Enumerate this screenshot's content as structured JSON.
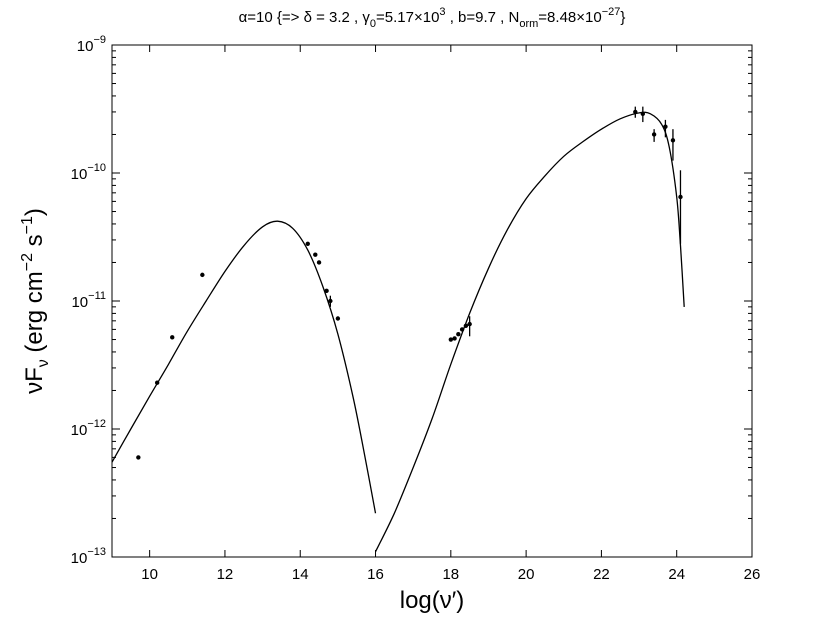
{
  "chart_data": {
    "type": "scatter",
    "title": "α=10 {=> δ = 3.2 , γ₀=5.17×10³ , b=9.7 , Nₒᵣₘ=8.48×10⁻²⁷}",
    "title_parts": {
      "a": "α=10 {=> δ = 3.2 , γ",
      "a_sub": "0",
      "b": "=5.17×10",
      "b_sup": "3",
      "c": " , b=9.7 , N",
      "c_sub": "orm",
      "d": "=8.48×10",
      "d_sup": "−27",
      "e": "}"
    },
    "xlabel": "log(ν′)",
    "ylabel": "νFν (erg cm⁻² s⁻¹)",
    "ylabel_parts": {
      "a": "νF",
      "a_sub": "ν",
      "b": " (erg cm",
      "b_sup": "−2",
      "c": " s",
      "c_sup": "−1",
      "d": ")"
    },
    "xlim": [
      9,
      26
    ],
    "ylim": [
      1e-13,
      1e-09
    ],
    "yscale": "log",
    "grid": false,
    "x_ticks": [
      10,
      12,
      14,
      16,
      18,
      20,
      22,
      24,
      26
    ],
    "y_ticks": [
      {
        "value": 1e-13,
        "base": "10",
        "exp": "−13"
      },
      {
        "value": 1e-12,
        "base": "10",
        "exp": "−12"
      },
      {
        "value": 1e-11,
        "base": "10",
        "exp": "−11"
      },
      {
        "value": 1e-10,
        "base": "10",
        "exp": "−10"
      },
      {
        "value": 1e-09,
        "base": "10",
        "exp": "−9"
      }
    ],
    "series": [
      {
        "kind": "points",
        "points": [
          {
            "x": 9.7,
            "y": 6e-13
          },
          {
            "x": 10.2,
            "y": 2.3e-12
          },
          {
            "x": 10.6,
            "y": 5.2e-12
          },
          {
            "x": 11.4,
            "y": 1.6e-11
          },
          {
            "x": 14.2,
            "y": 2.8e-11
          },
          {
            "x": 14.4,
            "y": 2.3e-11
          },
          {
            "x": 14.5,
            "y": 2e-11
          },
          {
            "x": 14.7,
            "y": 1.2e-11
          },
          {
            "x": 14.8,
            "y": 1e-11,
            "ylo": 9e-12,
            "yhi": 1.1e-11
          },
          {
            "x": 15.0,
            "y": 7.3e-12
          },
          {
            "x": 18.0,
            "y": 5e-12
          },
          {
            "x": 18.1,
            "y": 5.1e-12
          },
          {
            "x": 18.2,
            "y": 5.5e-12
          },
          {
            "x": 18.3,
            "y": 6e-12
          },
          {
            "x": 18.4,
            "y": 6.4e-12
          },
          {
            "x": 18.5,
            "y": 6.6e-12,
            "ylo": 5.3e-12,
            "yhi": 7.6e-12
          },
          {
            "x": 22.9,
            "y": 3e-10,
            "ylo": 2.7e-10,
            "yhi": 3.3e-10
          },
          {
            "x": 23.1,
            "y": 2.9e-10,
            "ylo": 2.5e-10,
            "yhi": 3.3e-10
          },
          {
            "x": 23.4,
            "y": 2e-10,
            "ylo": 1.75e-10,
            "yhi": 2.2e-10
          },
          {
            "x": 23.7,
            "y": 2.3e-10,
            "ylo": 1.9e-10,
            "yhi": 2.6e-10
          },
          {
            "x": 23.9,
            "y": 1.8e-10,
            "ylo": 1.25e-10,
            "yhi": 2.2e-10
          },
          {
            "x": 24.1,
            "y": 6.5e-11,
            "ylo": 2.8e-11,
            "yhi": 1.05e-10
          }
        ]
      },
      {
        "kind": "curve",
        "x": [
          9.0,
          9.5,
          10.0,
          10.5,
          11.0,
          11.5,
          12.0,
          12.5,
          13.0,
          13.4,
          13.8,
          14.2,
          14.6,
          15.0,
          15.4,
          15.7,
          16.0
        ],
        "y": [
          5.5e-13,
          1e-12,
          1.8e-12,
          3.2e-12,
          5.8e-12,
          1e-11,
          1.7e-11,
          2.7e-11,
          3.8e-11,
          4.2e-11,
          3.7e-11,
          2.5e-11,
          1.3e-11,
          5.5e-12,
          1.8e-12,
          6.5e-13,
          2.2e-13
        ]
      },
      {
        "kind": "curve",
        "x": [
          16.0,
          16.5,
          17.0,
          17.5,
          18.0,
          18.5,
          19.0,
          19.5,
          20.0,
          20.5,
          21.0,
          21.5,
          22.0,
          22.5,
          23.0,
          23.3,
          23.6,
          23.8,
          24.0,
          24.1,
          24.2
        ],
        "y": [
          1.1e-13,
          2.2e-13,
          5e-13,
          1.2e-12,
          3.2e-12,
          8e-12,
          1.8e-11,
          3.6e-11,
          6.3e-11,
          9.5e-11,
          1.35e-10,
          1.75e-10,
          2.2e-10,
          2.65e-10,
          2.95e-10,
          2.9e-10,
          2.4e-10,
          1.6e-10,
          6.5e-11,
          2.7e-11,
          9e-12
        ]
      }
    ]
  }
}
